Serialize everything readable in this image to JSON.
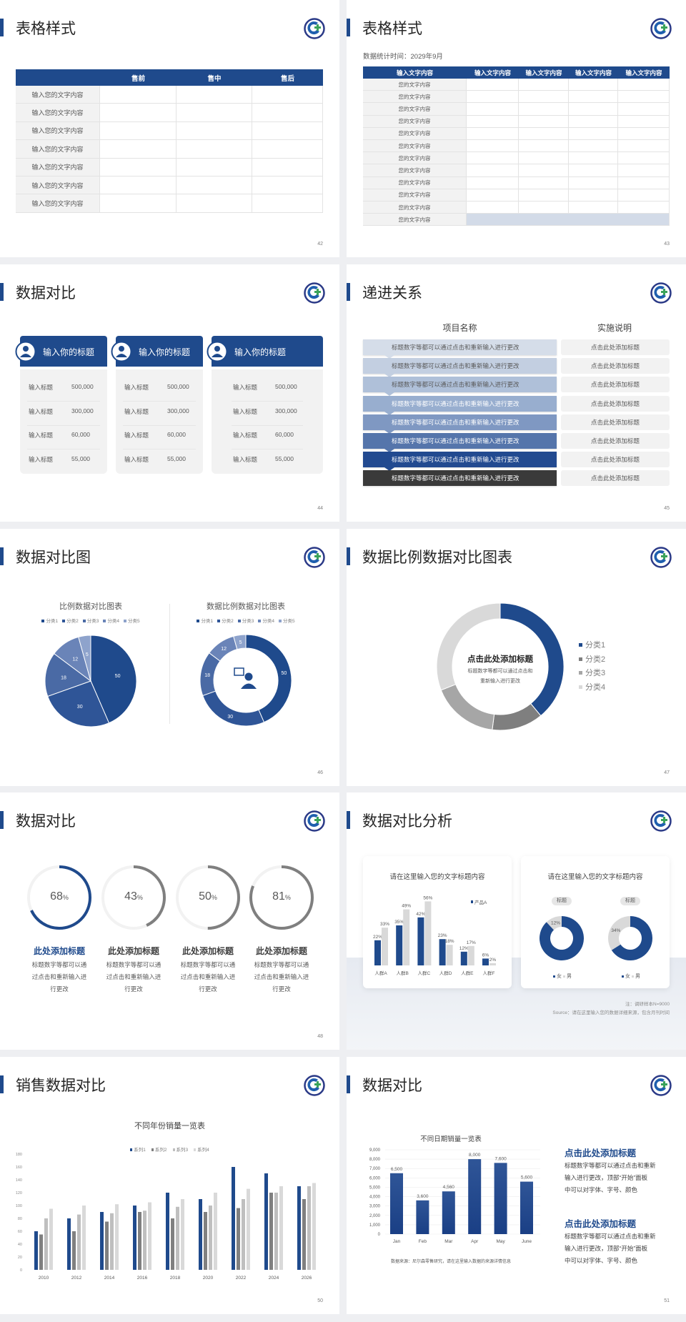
{
  "colors": {
    "primary": "#1f4a8c",
    "gray_dark": "#7f7f7f",
    "gray_mid": "#a6a6a6",
    "gray_light": "#d9d9d9",
    "background": "#eeeff2"
  },
  "logo": {
    "icon": "green-cross-swirl-logo"
  },
  "slides": [
    {
      "title": "表格样式",
      "page": "42",
      "table": {
        "headers": [
          "",
          "售前",
          "售中",
          "售后"
        ],
        "rows": [
          "输入您的文字内容",
          "输入您的文字内容",
          "输入您的文字内容",
          "输入您的文字内容",
          "输入您的文字内容",
          "输入您的文字内容",
          "输入您的文字内容"
        ]
      }
    },
    {
      "title": "表格样式",
      "page": "43",
      "subtitle": "数据统计时间：2029年9月",
      "table": {
        "headers": [
          "输入文字内容",
          "输入文字内容",
          "输入文字内容",
          "输入文字内容",
          "输入文字内容"
        ],
        "rows": [
          "您的文字内容",
          "您的文字内容",
          "您的文字内容",
          "您的文字内容",
          "您的文字内容",
          "您的文字内容",
          "您的文字内容",
          "您的文字内容",
          "您的文字内容",
          "您的文字内容",
          "您的文字内容",
          "您的文字内容"
        ]
      }
    },
    {
      "title": "数据对比",
      "page": "44",
      "cards": [
        {
          "icon": "mobile-user-icon",
          "heading": "输入你的标题",
          "rows": [
            {
              "label": "输入标题",
              "value": "500,000"
            },
            {
              "label": "输入标题",
              "value": "300,000"
            },
            {
              "label": "输入标题",
              "value": "60,000"
            },
            {
              "label": "输入标题",
              "value": "55,000"
            }
          ]
        },
        {
          "icon": "user-settings-icon",
          "heading": "输入你的标题",
          "rows": [
            {
              "label": "输入标题",
              "value": "500,000"
            },
            {
              "label": "输入标题",
              "value": "300,000"
            },
            {
              "label": "输入标题",
              "value": "60,000"
            },
            {
              "label": "输入标题",
              "value": "55,000"
            }
          ]
        },
        {
          "icon": "user-group-icon",
          "heading": "输入你的标题",
          "rows": [
            {
              "label": "输入标题",
              "value": "500,000"
            },
            {
              "label": "输入标题",
              "value": "300,000"
            },
            {
              "label": "输入标题",
              "value": "60,000"
            },
            {
              "label": "输入标题",
              "value": "55,000"
            }
          ]
        }
      ]
    },
    {
      "title": "递进关系",
      "page": "45",
      "col_headers": [
        "项目名称",
        "实施说明"
      ],
      "steps": [
        {
          "text": "标题数字等都可以通过点击和重新输入进行更改",
          "note": "点击此处添加标题",
          "color": "#d5dde9"
        },
        {
          "text": "标题数字等都可以通过点击和重新输入进行更改",
          "note": "点击此处添加标题",
          "color": "#c3cfe1"
        },
        {
          "text": "标题数字等都可以通过点击和重新输入进行更改",
          "note": "点击此处添加标题",
          "color": "#afc0d9"
        },
        {
          "text": "标题数字等都可以通过点击和重新输入进行更改",
          "note": "点击此处添加标题",
          "color": "#98aecf"
        },
        {
          "text": "标题数字等都可以通过点击和重新输入进行更改",
          "note": "点击此处添加标题",
          "color": "#7f98c2"
        },
        {
          "text": "标题数字等都可以通过点击和重新输入进行更改",
          "note": "点击此处添加标题",
          "color": "#5575ab"
        },
        {
          "text": "标题数字等都可以通过点击和重新输入进行更改",
          "note": "点击此处添加标题",
          "color": "#224a90"
        },
        {
          "text": "标题数字等都可以通过点击和重新输入进行更改",
          "note": "点击此处添加标题",
          "color": "#3a3a3a"
        }
      ]
    },
    {
      "title": "数据对比图",
      "page": "46",
      "center_icon": "customer-service-icon"
    },
    {
      "title": "数据比例数据对比图表",
      "page": "47",
      "center_title": "点击此处添加标题",
      "center_text": [
        "标题数字等都可以通过点击和",
        "重新输入进行更改"
      ]
    },
    {
      "title": "数据对比",
      "page": "48",
      "rings": [
        {
          "value": 68,
          "label": "68",
          "unit": "%",
          "color": "#1f4a8c",
          "heading": "此处添加标题",
          "heading_color": "#1f4a8c",
          "lines": [
            "标题数字等都可以通",
            "过点击和重新输入进",
            "行更改"
          ]
        },
        {
          "value": 43,
          "label": "43",
          "unit": "%",
          "color": "#7f7f7f",
          "heading": "此处添加标题",
          "heading_color": "#404040",
          "lines": [
            "标题数字等都可以通",
            "过点击和重新输入进",
            "行更改"
          ]
        },
        {
          "value": 50,
          "label": "50",
          "unit": "%",
          "color": "#7f7f7f",
          "heading": "此处添加标题",
          "heading_color": "#404040",
          "lines": [
            "标题数字等都可以通",
            "过点击和重新输入进",
            "行更改"
          ]
        },
        {
          "value": 81,
          "label": "81",
          "unit": "%",
          "color": "#7f7f7f",
          "heading": "此处添加标题",
          "heading_color": "#404040",
          "lines": [
            "标题数字等都可以通",
            "过点击和重新输入进",
            "行更改"
          ]
        }
      ]
    },
    {
      "title": "数据对比分析",
      "page": "49",
      "card_titles": [
        "请在这里输入您的文字标题内容",
        "请在这里输入您的文字标题内容"
      ],
      "pill_labels": [
        "标题",
        "标题"
      ],
      "legend": [
        "女",
        "男"
      ],
      "notes": [
        "注：调研样本N=9000",
        "Source：请在这里输入您的数据详细来源，包含月刊时间"
      ]
    },
    {
      "title": "销售数据对比",
      "page": "50"
    },
    {
      "title": "数据对比",
      "page": "51",
      "blocks": [
        {
          "heading": "点击此处添加标题",
          "lines": [
            "标题数字等都可以通过点击和重新",
            "输入进行更改，顶部“开始”面板",
            "中可以对字体、字号、颜色"
          ]
        },
        {
          "heading": "点击此处添加标题",
          "lines": [
            "标题数字等都可以通过点击和重新",
            "输入进行更改，顶部“开始”面板",
            "中可以对字体、字号、颜色"
          ]
        }
      ]
    }
  ],
  "chart_data": [
    {
      "id": "pie46",
      "type": "pie",
      "title": "比例数据对比图表",
      "legend": [
        "分类1",
        "分类2",
        "分类3",
        "分类4",
        "分类5"
      ],
      "legend_position": "top",
      "categories": [
        "分类1",
        "分类2",
        "分类3",
        "分类4",
        "分类5"
      ],
      "values": [
        50,
        30,
        18,
        12,
        5
      ],
      "colors": [
        "#1f4a8c",
        "#2f5597",
        "#4a6aa5",
        "#6a84b8",
        "#8ea3cc"
      ]
    },
    {
      "id": "donut46",
      "type": "pie",
      "subtype": "donut",
      "title": "数据比例数据对比图表",
      "legend": [
        "分类1",
        "分类2",
        "分类3",
        "分类4",
        "分类5"
      ],
      "legend_position": "top",
      "categories": [
        "分类1",
        "分类2",
        "分类3",
        "分类4",
        "分类5"
      ],
      "values": [
        50,
        30,
        18,
        12,
        5
      ],
      "colors": [
        "#1f4a8c",
        "#2f5597",
        "#4a6aa5",
        "#6a84b8",
        "#8ea3cc"
      ]
    },
    {
      "id": "donut47",
      "type": "pie",
      "subtype": "donut",
      "legend": [
        "分类1",
        "分类2",
        "分类3",
        "分类4"
      ],
      "legend_position": "right",
      "categories": [
        "分类1",
        "分类2",
        "分类3",
        "分类4"
      ],
      "values": [
        39,
        13,
        17,
        31
      ],
      "colors": [
        "#1f4a8c",
        "#7f7f7f",
        "#a6a6a6",
        "#d9d9d9"
      ]
    },
    {
      "id": "bar49",
      "type": "bar",
      "categories": [
        "人群A",
        "人群B",
        "人群C",
        "人群D",
        "人群E",
        "人群F"
      ],
      "unit": "%",
      "legend_position": "top-right",
      "series": [
        {
          "name": "产品A",
          "values": [
            22,
            35,
            42,
            23,
            12,
            6
          ],
          "color": "#1f4a8c"
        },
        {
          "values": [
            33,
            49,
            56,
            18,
            17,
            2
          ],
          "color": "#d9d9d9"
        }
      ]
    },
    {
      "id": "donut49a",
      "type": "pie",
      "subtype": "donut",
      "categories": [
        "女",
        "男"
      ],
      "values": [
        88,
        12
      ],
      "labels": [
        "",
        "12%"
      ],
      "colors": [
        "#1f4a8c",
        "#d9d9d9"
      ]
    },
    {
      "id": "donut49b",
      "type": "pie",
      "subtype": "donut",
      "categories": [
        "女",
        "男"
      ],
      "values": [
        66,
        34
      ],
      "labels": [
        "",
        "34%"
      ],
      "colors": [
        "#1f4a8c",
        "#d9d9d9"
      ]
    },
    {
      "id": "bar50",
      "type": "bar",
      "title": "不同年份销量一览表",
      "legend_position": "top",
      "ylim": [
        0,
        180
      ],
      "yticks": [
        0,
        20,
        40,
        60,
        80,
        100,
        120,
        140,
        160,
        180
      ],
      "categories": [
        "2010",
        "2012",
        "2014",
        "2016",
        "2018",
        "2020",
        "2022",
        "2024",
        "2026"
      ],
      "series": [
        {
          "name": "系列1",
          "values": [
            60,
            80,
            90,
            100,
            120,
            110,
            160,
            150,
            130
          ],
          "color": "#1f4a8c"
        },
        {
          "name": "系列2",
          "values": [
            55,
            60,
            75,
            90,
            80,
            90,
            96,
            120,
            110
          ],
          "color": "#808080"
        },
        {
          "name": "系列3",
          "values": [
            80,
            86,
            88,
            92,
            98,
            100,
            110,
            120,
            130
          ],
          "color": "#bfbfbf"
        },
        {
          "name": "系列4",
          "values": [
            95,
            100,
            102,
            105,
            110,
            120,
            126,
            130,
            135
          ],
          "color": "#d9d9d9"
        }
      ]
    },
    {
      "id": "bar51",
      "type": "bar",
      "title": "不同日期销量一览表",
      "ylim": [
        0,
        9000
      ],
      "yticks": [
        "0",
        "1,000",
        "2,000",
        "3,000",
        "4,000",
        "5,000",
        "6,000",
        "7,000",
        "8,000",
        "9,000"
      ],
      "categories": [
        "Jan",
        "Feb",
        "Mar",
        "Apr",
        "May",
        "June"
      ],
      "values": [
        6500,
        3600,
        4560,
        8000,
        7600,
        5600
      ],
      "labels": [
        "6,500",
        "3,600",
        "4,560",
        "8,000",
        "7,600",
        "5,600"
      ],
      "color": "#1f4a8c",
      "source": "数据来源：尼尔森零售研究，请在这里输入数据的来源详情信息"
    }
  ]
}
